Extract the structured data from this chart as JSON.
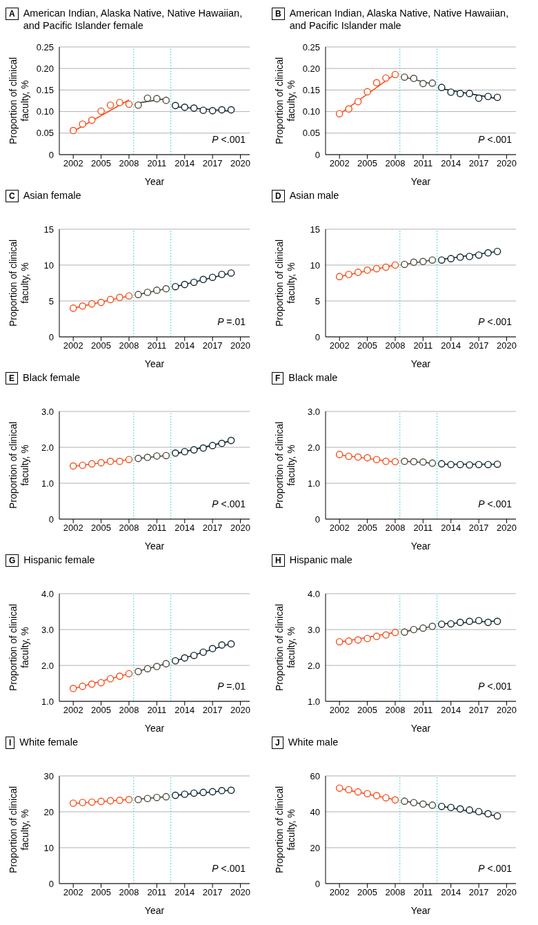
{
  "chart_data": [
    {
      "type": "scatter",
      "title": "American Indian, Alaska Native, Native Hawaiian, and Pacific Islander female",
      "annotations": [
        "A",
        "P <.001"
      ],
      "xlabel": "Year",
      "ylabel": "Proportion of clinical faculty, %",
      "xlim": [
        2000.5,
        2021
      ],
      "xticks": [
        2002,
        2005,
        2008,
        2011,
        2014,
        2017,
        2020
      ],
      "ylim": [
        0,
        0.25
      ],
      "yticks": [
        0,
        0.05,
        {
          "value": 0.1,
          "label": "0.10"
        },
        0.15,
        {
          "value": 0.2,
          "label": "0.20"
        },
        0.25
      ],
      "grid": "y",
      "marker": "circle",
      "ref_lines": [
        {
          "axis": "x",
          "value": 2008.5,
          "color": "#3fd0e6",
          "line_style": "dotted"
        },
        {
          "axis": "x",
          "value": 2012.5,
          "color": "#3fd0e6",
          "line_style": "dotted"
        }
      ],
      "series": [
        {
          "color": "#f4511e",
          "x": [
            2002,
            2003,
            2004,
            2005,
            2006,
            2007,
            2008
          ],
          "values": [
            0.056,
            0.071,
            0.08,
            0.101,
            0.115,
            0.121,
            0.117
          ]
        },
        {
          "color": "#4d4d3d",
          "x": [
            2009,
            2010,
            2011,
            2012
          ],
          "values": [
            0.115,
            0.131,
            0.13,
            0.126
          ]
        },
        {
          "color": "#10262e",
          "x": [
            2013,
            2014,
            2015,
            2016,
            2017,
            2018,
            2019
          ],
          "values": [
            0.114,
            0.11,
            0.108,
            0.103,
            0.102,
            0.104,
            0.104
          ]
        },
        {
          "type": "line",
          "marker": "none",
          "color": "#f4511e",
          "x": [
            2002,
            2008
          ],
          "values": [
            0.054,
            0.127
          ]
        },
        {
          "type": "line",
          "marker": "none",
          "color": "#4d4d3d",
          "x": [
            2009,
            2012
          ],
          "values": [
            0.12,
            0.13
          ]
        },
        {
          "type": "line",
          "marker": "none",
          "color": "#10262e",
          "x": [
            2013,
            2019
          ],
          "values": [
            0.111,
            0.101
          ]
        }
      ]
    },
    {
      "type": "scatter",
      "title": "American Indian, Alaska Native, Native Hawaiian, and Pacific Islander male",
      "annotations": [
        "B",
        "P <.001"
      ],
      "xlabel": "Year",
      "ylabel": "Proportion of clinical faculty, %",
      "xlim": [
        2000.5,
        2021
      ],
      "xticks": [
        2002,
        2005,
        2008,
        2011,
        2014,
        2017,
        2020
      ],
      "ylim": [
        0,
        0.25
      ],
      "yticks": [
        0,
        0.05,
        {
          "value": 0.1,
          "label": "0.10"
        },
        0.15,
        {
          "value": 0.2,
          "label": "0.20"
        },
        0.25
      ],
      "grid": "y",
      "marker": "circle",
      "ref_lines": [
        {
          "axis": "x",
          "value": 2008.5,
          "color": "#3fd0e6",
          "line_style": "dotted"
        },
        {
          "axis": "x",
          "value": 2012.5,
          "color": "#3fd0e6",
          "line_style": "dotted"
        }
      ],
      "series": [
        {
          "color": "#f4511e",
          "x": [
            2002,
            2003,
            2004,
            2005,
            2006,
            2007,
            2008
          ],
          "values": [
            0.095,
            0.106,
            0.123,
            0.146,
            0.167,
            0.178,
            0.186
          ]
        },
        {
          "color": "#4d4d3d",
          "x": [
            2009,
            2010,
            2011,
            2012
          ],
          "values": [
            0.18,
            0.177,
            0.165,
            0.166
          ]
        },
        {
          "color": "#10262e",
          "x": [
            2013,
            2014,
            2015,
            2016,
            2017,
            2018,
            2019
          ],
          "values": [
            0.156,
            0.145,
            0.142,
            0.142,
            0.131,
            0.135,
            0.133
          ]
        },
        {
          "type": "line",
          "marker": "none",
          "color": "#f4511e",
          "x": [
            2002,
            2008
          ],
          "values": [
            0.094,
            0.187
          ]
        },
        {
          "type": "line",
          "marker": "none",
          "color": "#4d4d3d",
          "x": [
            2009,
            2012
          ],
          "values": [
            0.18,
            0.164
          ]
        },
        {
          "type": "line",
          "marker": "none",
          "color": "#10262e",
          "x": [
            2013,
            2019
          ],
          "values": [
            0.153,
            0.13
          ]
        }
      ]
    },
    {
      "type": "scatter",
      "title": "Asian female",
      "annotations": [
        "C",
        "P =.01"
      ],
      "xlabel": "Year",
      "ylabel": "Proportion of clinical faculty, %",
      "xlim": [
        2000.5,
        2021
      ],
      "xticks": [
        2002,
        2005,
        2008,
        2011,
        2014,
        2017,
        2020
      ],
      "ylim": [
        0,
        15
      ],
      "yticks": [
        0,
        5,
        10,
        15
      ],
      "grid": "y",
      "marker": "circle",
      "ref_lines": [
        {
          "axis": "x",
          "value": 2008.5,
          "color": "#3fd0e6",
          "line_style": "dotted"
        },
        {
          "axis": "x",
          "value": 2012.5,
          "color": "#3fd0e6",
          "line_style": "dotted"
        }
      ],
      "series": [
        {
          "color": "#f4511e",
          "x": [
            2002,
            2003,
            2004,
            2005,
            2006,
            2007,
            2008
          ],
          "values": [
            4.0,
            4.3,
            4.6,
            4.8,
            5.2,
            5.5,
            5.7
          ]
        },
        {
          "color": "#4d4d3d",
          "x": [
            2009,
            2010,
            2011,
            2012
          ],
          "values": [
            5.9,
            6.2,
            6.5,
            6.7
          ]
        },
        {
          "color": "#10262e",
          "x": [
            2013,
            2014,
            2015,
            2016,
            2017,
            2018,
            2019
          ],
          "values": [
            7.0,
            7.3,
            7.6,
            8.0,
            8.3,
            8.7,
            8.9
          ]
        },
        {
          "type": "line",
          "marker": "none",
          "color": "#f4511e",
          "x": [
            2002,
            2008
          ],
          "values": [
            4.0,
            5.7
          ]
        },
        {
          "type": "line",
          "marker": "none",
          "color": "#4d4d3d",
          "x": [
            2009,
            2012
          ],
          "values": [
            5.9,
            6.7
          ]
        },
        {
          "type": "line",
          "marker": "none",
          "color": "#10262e",
          "x": [
            2013,
            2019
          ],
          "values": [
            7.0,
            8.9
          ]
        }
      ]
    },
    {
      "type": "scatter",
      "title": "Asian male",
      "annotations": [
        "D",
        "P <.001"
      ],
      "xlabel": "Year",
      "ylabel": "Proportion of clinical faculty, %",
      "xlim": [
        2000.5,
        2021
      ],
      "xticks": [
        2002,
        2005,
        2008,
        2011,
        2014,
        2017,
        2020
      ],
      "ylim": [
        0,
        15
      ],
      "yticks": [
        0,
        5,
        10,
        15
      ],
      "grid": "y",
      "marker": "circle",
      "ref_lines": [
        {
          "axis": "x",
          "value": 2008.5,
          "color": "#3fd0e6",
          "line_style": "dotted"
        },
        {
          "axis": "x",
          "value": 2012.5,
          "color": "#3fd0e6",
          "line_style": "dotted"
        }
      ],
      "series": [
        {
          "color": "#f4511e",
          "x": [
            2002,
            2003,
            2004,
            2005,
            2006,
            2007,
            2008
          ],
          "values": [
            8.4,
            8.7,
            9.0,
            9.3,
            9.5,
            9.7,
            10.0
          ]
        },
        {
          "color": "#4d4d3d",
          "x": [
            2009,
            2010,
            2011,
            2012
          ],
          "values": [
            10.1,
            10.4,
            10.5,
            10.7
          ]
        },
        {
          "color": "#10262e",
          "x": [
            2013,
            2014,
            2015,
            2016,
            2017,
            2018,
            2019
          ],
          "values": [
            10.7,
            10.9,
            11.1,
            11.2,
            11.4,
            11.7,
            11.9
          ]
        },
        {
          "type": "line",
          "marker": "none",
          "color": "#f4511e",
          "x": [
            2002,
            2008
          ],
          "values": [
            8.4,
            10.0
          ]
        },
        {
          "type": "line",
          "marker": "none",
          "color": "#4d4d3d",
          "x": [
            2009,
            2012
          ],
          "values": [
            10.1,
            10.7
          ]
        },
        {
          "type": "line",
          "marker": "none",
          "color": "#10262e",
          "x": [
            2013,
            2019
          ],
          "values": [
            10.8,
            11.9
          ]
        }
      ]
    },
    {
      "type": "scatter",
      "title": "Black female",
      "annotations": [
        "E",
        "P <.001"
      ],
      "xlabel": "Year",
      "ylabel": "Proportion of clinical faculty, %",
      "xlim": [
        2000.5,
        2021
      ],
      "xticks": [
        2002,
        2005,
        2008,
        2011,
        2014,
        2017,
        2020
      ],
      "ylim": [
        0,
        3
      ],
      "yticks": [
        0,
        {
          "value": 1,
          "label": "1.0"
        },
        {
          "value": 2,
          "label": "2.0"
        },
        {
          "value": 3,
          "label": "3.0"
        }
      ],
      "grid": "y",
      "marker": "circle",
      "ref_lines": [
        {
          "axis": "x",
          "value": 2008.5,
          "color": "#3fd0e6",
          "line_style": "dotted"
        },
        {
          "axis": "x",
          "value": 2012.5,
          "color": "#3fd0e6",
          "line_style": "dotted"
        }
      ],
      "series": [
        {
          "color": "#f4511e",
          "x": [
            2002,
            2003,
            2004,
            2005,
            2006,
            2007,
            2008
          ],
          "values": [
            1.48,
            1.5,
            1.54,
            1.57,
            1.61,
            1.61,
            1.66
          ]
        },
        {
          "color": "#4d4d3d",
          "x": [
            2009,
            2010,
            2011,
            2012
          ],
          "values": [
            1.69,
            1.72,
            1.76,
            1.77
          ]
        },
        {
          "color": "#10262e",
          "x": [
            2013,
            2014,
            2015,
            2016,
            2017,
            2018,
            2019
          ],
          "values": [
            1.84,
            1.88,
            1.93,
            1.98,
            2.05,
            2.11,
            2.19
          ]
        },
        {
          "type": "line",
          "marker": "none",
          "color": "#f4511e",
          "x": [
            2002,
            2008
          ],
          "values": [
            1.47,
            1.66
          ]
        },
        {
          "type": "line",
          "marker": "none",
          "color": "#4d4d3d",
          "x": [
            2009,
            2012
          ],
          "values": [
            1.69,
            1.77
          ]
        },
        {
          "type": "line",
          "marker": "none",
          "color": "#10262e",
          "x": [
            2013,
            2019
          ],
          "values": [
            1.82,
            2.18
          ]
        }
      ]
    },
    {
      "type": "scatter",
      "title": "Black male",
      "annotations": [
        "F",
        "P <.001"
      ],
      "xlabel": "Year",
      "ylabel": "Proportion of clinical faculty, %",
      "xlim": [
        2000.5,
        2021
      ],
      "xticks": [
        2002,
        2005,
        2008,
        2011,
        2014,
        2017,
        2020
      ],
      "ylim": [
        0,
        3
      ],
      "yticks": [
        0,
        {
          "value": 1,
          "label": "1.0"
        },
        {
          "value": 2,
          "label": "2.0"
        },
        {
          "value": 3,
          "label": "3.0"
        }
      ],
      "grid": "y",
      "marker": "circle",
      "ref_lines": [
        {
          "axis": "x",
          "value": 2008.5,
          "color": "#3fd0e6",
          "line_style": "dotted"
        },
        {
          "axis": "x",
          "value": 2012.5,
          "color": "#3fd0e6",
          "line_style": "dotted"
        }
      ],
      "series": [
        {
          "color": "#f4511e",
          "x": [
            2002,
            2003,
            2004,
            2005,
            2006,
            2007,
            2008
          ],
          "values": [
            1.8,
            1.75,
            1.73,
            1.71,
            1.66,
            1.61,
            1.6
          ]
        },
        {
          "color": "#4d4d3d",
          "x": [
            2009,
            2010,
            2011,
            2012
          ],
          "values": [
            1.61,
            1.6,
            1.59,
            1.56
          ]
        },
        {
          "color": "#10262e",
          "x": [
            2013,
            2014,
            2015,
            2016,
            2017,
            2018,
            2019
          ],
          "values": [
            1.54,
            1.52,
            1.52,
            1.51,
            1.52,
            1.52,
            1.53
          ]
        },
        {
          "type": "line",
          "marker": "none",
          "color": "#f4511e",
          "x": [
            2002,
            2008
          ],
          "values": [
            1.79,
            1.59
          ]
        },
        {
          "type": "line",
          "marker": "none",
          "color": "#4d4d3d",
          "x": [
            2009,
            2012
          ],
          "values": [
            1.61,
            1.56
          ]
        },
        {
          "type": "line",
          "marker": "none",
          "color": "#10262e",
          "x": [
            2013,
            2019
          ],
          "values": [
            1.53,
            1.53
          ]
        }
      ]
    },
    {
      "type": "scatter",
      "title": "Hispanic female",
      "annotations": [
        "G",
        "P =.01"
      ],
      "xlabel": "Year",
      "ylabel": "Proportion of clinical faculty, %",
      "xlim": [
        2000.5,
        2021
      ],
      "xticks": [
        2002,
        2005,
        2008,
        2011,
        2014,
        2017,
        2020
      ],
      "ylim": [
        1,
        4
      ],
      "yticks": [
        {
          "value": 1,
          "label": "1.0"
        },
        {
          "value": 2,
          "label": "2.0"
        },
        {
          "value": 3,
          "label": "3.0"
        },
        {
          "value": 4,
          "label": "4.0"
        }
      ],
      "grid": "y",
      "marker": "circle",
      "ref_lines": [
        {
          "axis": "x",
          "value": 2008.5,
          "color": "#3fd0e6",
          "line_style": "dotted"
        },
        {
          "axis": "x",
          "value": 2012.5,
          "color": "#3fd0e6",
          "line_style": "dotted"
        }
      ],
      "series": [
        {
          "color": "#f4511e",
          "x": [
            2002,
            2003,
            2004,
            2005,
            2006,
            2007,
            2008
          ],
          "values": [
            1.36,
            1.42,
            1.48,
            1.52,
            1.63,
            1.7,
            1.77
          ]
        },
        {
          "color": "#4d4d3d",
          "x": [
            2009,
            2010,
            2011,
            2012
          ],
          "values": [
            1.83,
            1.91,
            1.97,
            2.05
          ]
        },
        {
          "color": "#10262e",
          "x": [
            2013,
            2014,
            2015,
            2016,
            2017,
            2018,
            2019
          ],
          "values": [
            2.13,
            2.21,
            2.28,
            2.37,
            2.47,
            2.57,
            2.6
          ]
        },
        {
          "type": "line",
          "marker": "none",
          "color": "#f4511e",
          "x": [
            2002,
            2008
          ],
          "values": [
            1.35,
            1.77
          ]
        },
        {
          "type": "line",
          "marker": "none",
          "color": "#4d4d3d",
          "x": [
            2009,
            2012
          ],
          "values": [
            1.84,
            2.05
          ]
        },
        {
          "type": "line",
          "marker": "none",
          "color": "#10262e",
          "x": [
            2013,
            2019
          ],
          "values": [
            2.13,
            2.61
          ]
        }
      ]
    },
    {
      "type": "scatter",
      "title": "Hispanic male",
      "annotations": [
        "H",
        "P <.001"
      ],
      "xlabel": "Year",
      "ylabel": "Proportion of clinical faculty, %",
      "xlim": [
        2000.5,
        2021
      ],
      "xticks": [
        2002,
        2005,
        2008,
        2011,
        2014,
        2017,
        2020
      ],
      "ylim": [
        1,
        4
      ],
      "yticks": [
        {
          "value": 1,
          "label": "1.0"
        },
        {
          "value": 2,
          "label": "2.0"
        },
        {
          "value": 3,
          "label": "3.0"
        },
        {
          "value": 4,
          "label": "4.0"
        }
      ],
      "grid": "y",
      "marker": "circle",
      "ref_lines": [
        {
          "axis": "x",
          "value": 2008.5,
          "color": "#3fd0e6",
          "line_style": "dotted"
        },
        {
          "axis": "x",
          "value": 2012.5,
          "color": "#3fd0e6",
          "line_style": "dotted"
        }
      ],
      "series": [
        {
          "color": "#f4511e",
          "x": [
            2002,
            2003,
            2004,
            2005,
            2006,
            2007,
            2008
          ],
          "values": [
            2.66,
            2.68,
            2.71,
            2.75,
            2.81,
            2.85,
            2.92
          ]
        },
        {
          "color": "#4d4d3d",
          "x": [
            2009,
            2010,
            2011,
            2012
          ],
          "values": [
            2.93,
            3.0,
            3.04,
            3.09
          ]
        },
        {
          "color": "#10262e",
          "x": [
            2013,
            2014,
            2015,
            2016,
            2017,
            2018,
            2019
          ],
          "values": [
            3.15,
            3.16,
            3.2,
            3.23,
            3.25,
            3.2,
            3.23
          ]
        },
        {
          "type": "line",
          "marker": "none",
          "color": "#f4511e",
          "x": [
            2002,
            2008
          ],
          "values": [
            2.65,
            2.92
          ]
        },
        {
          "type": "line",
          "marker": "none",
          "color": "#4d4d3d",
          "x": [
            2009,
            2012
          ],
          "values": [
            2.94,
            3.09
          ]
        },
        {
          "type": "line",
          "marker": "none",
          "color": "#10262e",
          "x": [
            2013,
            2019
          ],
          "values": [
            3.16,
            3.24
          ]
        }
      ]
    },
    {
      "type": "scatter",
      "title": "White female",
      "annotations": [
        "I",
        "P <.001"
      ],
      "xlabel": "Year",
      "ylabel": "Proportion of clinical faculty, %",
      "xlim": [
        2000.5,
        2021
      ],
      "xticks": [
        2002,
        2005,
        2008,
        2011,
        2014,
        2017,
        2020
      ],
      "ylim": [
        0,
        30
      ],
      "yticks": [
        0,
        10,
        20,
        30
      ],
      "grid": "y",
      "marker": "circle",
      "ref_lines": [
        {
          "axis": "x",
          "value": 2008.5,
          "color": "#3fd0e6",
          "line_style": "dotted"
        },
        {
          "axis": "x",
          "value": 2012.5,
          "color": "#3fd0e6",
          "line_style": "dotted"
        }
      ],
      "series": [
        {
          "color": "#f4511e",
          "x": [
            2002,
            2003,
            2004,
            2005,
            2006,
            2007,
            2008
          ],
          "values": [
            22.4,
            22.6,
            22.7,
            22.9,
            23.1,
            23.2,
            23.4
          ]
        },
        {
          "color": "#4d4d3d",
          "x": [
            2009,
            2010,
            2011,
            2012
          ],
          "values": [
            23.4,
            23.7,
            24.0,
            24.2
          ]
        },
        {
          "color": "#10262e",
          "x": [
            2013,
            2014,
            2015,
            2016,
            2017,
            2018,
            2019
          ],
          "values": [
            24.6,
            24.9,
            25.2,
            25.4,
            25.6,
            25.9,
            26.0
          ]
        },
        {
          "type": "line",
          "marker": "none",
          "color": "#f4511e",
          "x": [
            2002,
            2008
          ],
          "values": [
            22.3,
            23.4
          ]
        },
        {
          "type": "line",
          "marker": "none",
          "color": "#4d4d3d",
          "x": [
            2009,
            2012
          ],
          "values": [
            23.5,
            24.2
          ]
        },
        {
          "type": "line",
          "marker": "none",
          "color": "#10262e",
          "x": [
            2013,
            2019
          ],
          "values": [
            24.6,
            26.0
          ]
        }
      ]
    },
    {
      "type": "scatter",
      "title": "White male",
      "annotations": [
        "J",
        "P <.001"
      ],
      "xlabel": "Year",
      "ylabel": "Proportion of clinical faculty, %",
      "xlim": [
        2000.5,
        2021
      ],
      "xticks": [
        2002,
        2005,
        2008,
        2011,
        2014,
        2017,
        2020
      ],
      "ylim": [
        0,
        60
      ],
      "yticks": [
        0,
        20,
        40,
        60
      ],
      "grid": "y",
      "marker": "circle",
      "ref_lines": [
        {
          "axis": "x",
          "value": 2008.5,
          "color": "#3fd0e6",
          "line_style": "dotted"
        },
        {
          "axis": "x",
          "value": 2012.5,
          "color": "#3fd0e6",
          "line_style": "dotted"
        }
      ],
      "series": [
        {
          "color": "#f4511e",
          "x": [
            2002,
            2003,
            2004,
            2005,
            2006,
            2007,
            2008
          ],
          "values": [
            53.2,
            52.3,
            51.1,
            50.1,
            49.0,
            47.8,
            46.6
          ]
        },
        {
          "color": "#4d4d3d",
          "x": [
            2009,
            2010,
            2011,
            2012
          ],
          "values": [
            45.9,
            45.1,
            44.3,
            43.7
          ]
        },
        {
          "color": "#10262e",
          "x": [
            2013,
            2014,
            2015,
            2016,
            2017,
            2018,
            2019
          ],
          "values": [
            43.0,
            42.4,
            41.6,
            41.0,
            40.1,
            38.9,
            37.7
          ]
        },
        {
          "type": "line",
          "marker": "none",
          "color": "#f4511e",
          "x": [
            2002,
            2008
          ],
          "values": [
            53.0,
            46.7
          ]
        },
        {
          "type": "line",
          "marker": "none",
          "color": "#4d4d3d",
          "x": [
            2009,
            2012
          ],
          "values": [
            45.9,
            43.6
          ]
        },
        {
          "type": "line",
          "marker": "none",
          "color": "#10262e",
          "x": [
            2013,
            2019
          ],
          "values": [
            43.1,
            37.6
          ]
        }
      ]
    }
  ]
}
